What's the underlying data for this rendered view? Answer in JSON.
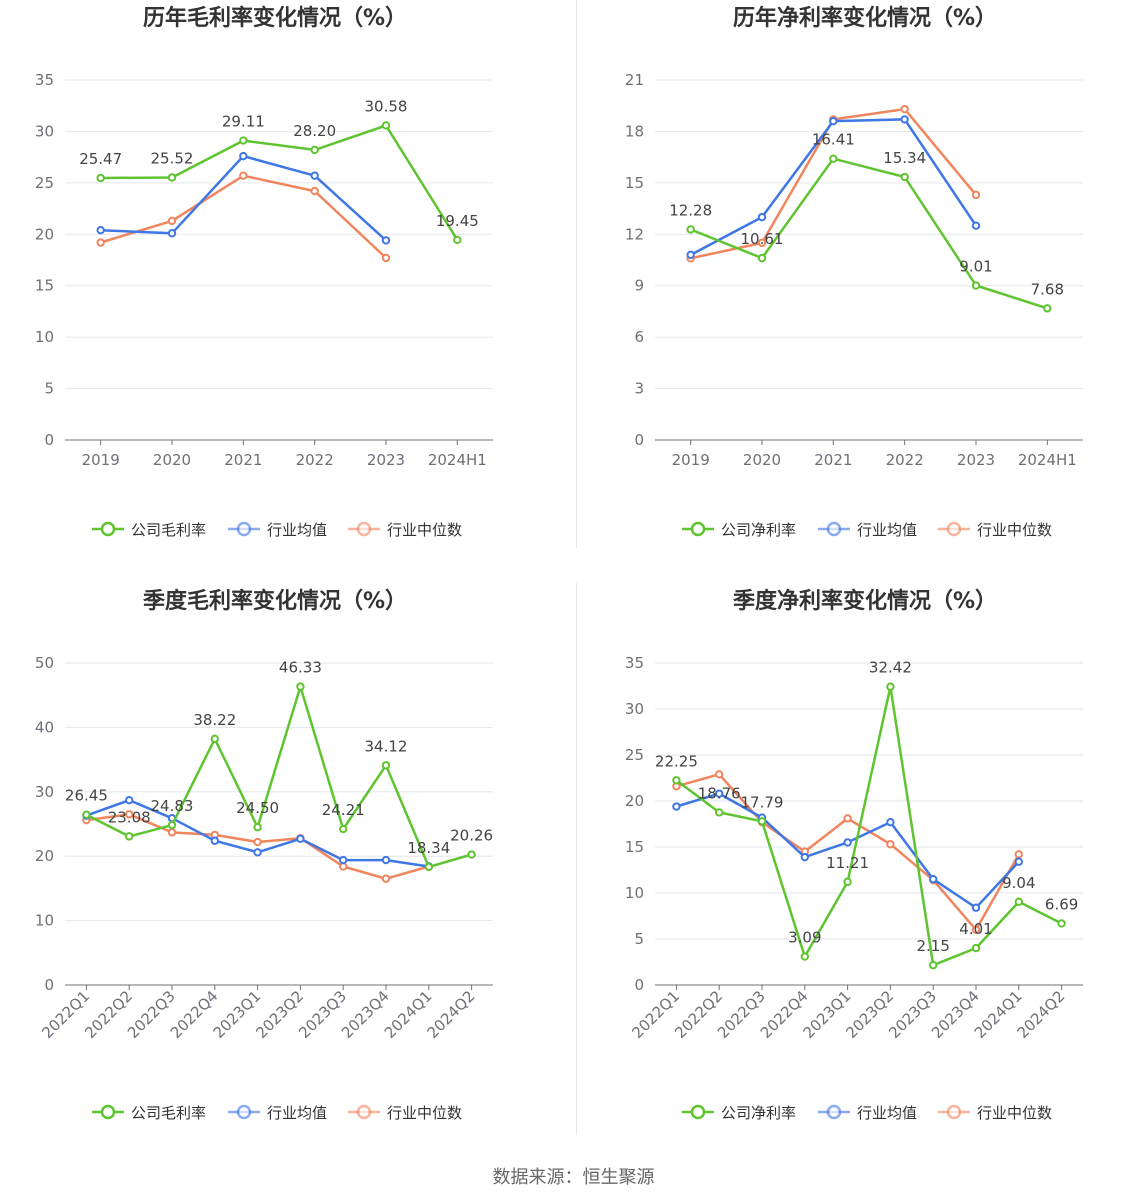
{
  "colors": {
    "company": "#5ec42f",
    "avg": "#3f77e4",
    "median": "#f0855e"
  },
  "charts": [
    {
      "type": "line",
      "title": "历年毛利率变化情况（%）",
      "categories": [
        "2019",
        "2020",
        "2021",
        "2022",
        "2023",
        "2024H1"
      ],
      "ylim": [
        0,
        35
      ],
      "yticks": [
        0,
        5,
        10,
        15,
        20,
        25,
        30,
        35
      ],
      "rotate_x": false,
      "series": [
        {
          "key": "company",
          "name": "公司毛利率",
          "values": [
            25.47,
            25.52,
            29.11,
            28.2,
            30.58,
            19.45
          ],
          "labels": [
            "25.47",
            "25.52",
            "29.11",
            "28.20",
            "30.58",
            "19.45"
          ]
        },
        {
          "key": "avg",
          "name": "行业均值",
          "values": [
            20.4,
            20.1,
            27.6,
            25.7,
            19.4,
            null
          ]
        },
        {
          "key": "median",
          "name": "行业中位数",
          "values": [
            19.2,
            21.3,
            25.7,
            24.2,
            17.7,
            null
          ]
        }
      ]
    },
    {
      "type": "line",
      "title": "历年净利率变化情况（%）",
      "categories": [
        "2019",
        "2020",
        "2021",
        "2022",
        "2023",
        "2024H1"
      ],
      "ylim": [
        0,
        21
      ],
      "yticks": [
        0,
        3,
        6,
        9,
        12,
        15,
        18,
        21
      ],
      "rotate_x": false,
      "series": [
        {
          "key": "company",
          "name": "公司净利率",
          "values": [
            12.28,
            10.61,
            16.41,
            15.34,
            9.01,
            7.68
          ],
          "labels": [
            "12.28",
            "10.61",
            "16.41",
            "15.34",
            "9.01",
            "7.68"
          ]
        },
        {
          "key": "avg",
          "name": "行业均值",
          "values": [
            10.8,
            13.0,
            18.6,
            18.7,
            12.5,
            null
          ]
        },
        {
          "key": "median",
          "name": "行业中位数",
          "values": [
            10.6,
            11.5,
            18.7,
            19.3,
            14.3,
            null
          ]
        }
      ]
    },
    {
      "type": "line",
      "title": "季度毛利率变化情况（%）",
      "categories": [
        "2022Q1",
        "2022Q2",
        "2022Q3",
        "2022Q4",
        "2023Q1",
        "2023Q2",
        "2023Q3",
        "2023Q4",
        "2024Q1",
        "2024Q2"
      ],
      "ylim": [
        0,
        50
      ],
      "yticks": [
        0,
        10,
        20,
        30,
        40,
        50
      ],
      "rotate_x": true,
      "series": [
        {
          "key": "company",
          "name": "公司毛利率",
          "values": [
            26.45,
            23.08,
            24.83,
            38.22,
            24.5,
            46.33,
            24.21,
            34.12,
            18.34,
            20.26
          ],
          "labels": [
            "26.45",
            "23.08",
            "24.83",
            "38.22",
            "24.50",
            "46.33",
            "24.21",
            "34.12",
            "18.34",
            "20.26"
          ]
        },
        {
          "key": "avg",
          "name": "行业均值",
          "values": [
            26.3,
            28.7,
            25.9,
            22.4,
            20.6,
            22.7,
            19.4,
            19.4,
            18.4,
            null
          ]
        },
        {
          "key": "median",
          "name": "行业中位数",
          "values": [
            25.6,
            26.5,
            23.7,
            23.3,
            22.2,
            22.8,
            18.4,
            16.5,
            18.4,
            null
          ]
        }
      ]
    },
    {
      "type": "line",
      "title": "季度净利率变化情况（%）",
      "categories": [
        "2022Q1",
        "2022Q2",
        "2022Q3",
        "2022Q4",
        "2023Q1",
        "2023Q2",
        "2023Q3",
        "2023Q4",
        "2024Q1",
        "2024Q2"
      ],
      "ylim": [
        0,
        35
      ],
      "yticks": [
        0,
        5,
        10,
        15,
        20,
        25,
        30,
        35
      ],
      "rotate_x": true,
      "series": [
        {
          "key": "company",
          "name": "公司净利率",
          "values": [
            22.25,
            18.76,
            17.79,
            3.09,
            11.21,
            32.42,
            2.15,
            4.01,
            9.04,
            6.69
          ],
          "labels": [
            "22.25",
            "18.76",
            "17.79",
            "3.09",
            "11.21",
            "32.42",
            "2.15",
            "4.01",
            "9.04",
            "6.69"
          ]
        },
        {
          "key": "avg",
          "name": "行业均值",
          "values": [
            19.4,
            20.8,
            18.2,
            13.9,
            15.5,
            17.7,
            11.5,
            8.4,
            13.4,
            null
          ]
        },
        {
          "key": "median",
          "name": "行业中位数",
          "values": [
            21.6,
            22.9,
            17.7,
            14.5,
            18.1,
            15.3,
            11.4,
            6.0,
            14.2,
            null
          ]
        }
      ]
    }
  ],
  "footer": "数据来源：恒生聚源"
}
